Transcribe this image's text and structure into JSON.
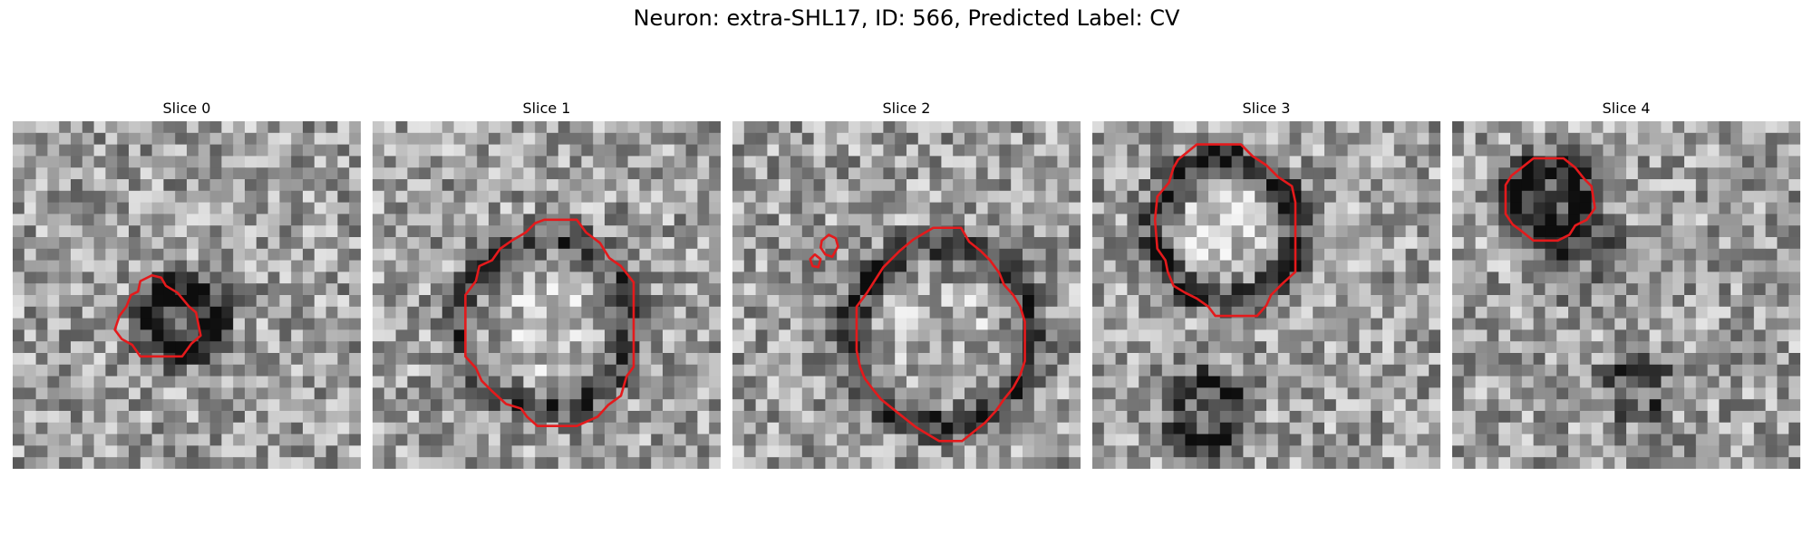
{
  "figure": {
    "title": "Neuron: extra-SHL17, ID: 566, Predicted Label: CV"
  },
  "colors": {
    "contour": "#e41a1c",
    "background": "#ffffff"
  },
  "slices": [
    {
      "title": "Slice 0",
      "contours": [
        [
          [
            11,
            13.8
          ],
          [
            12,
            13.3
          ],
          [
            12.8,
            13.5
          ],
          [
            13.2,
            14.2
          ],
          [
            14.2,
            14.8
          ],
          [
            15.2,
            16
          ],
          [
            15.8,
            16.5
          ],
          [
            16.2,
            18.5
          ],
          [
            15.4,
            19.2
          ],
          [
            14.6,
            20.3
          ],
          [
            11,
            20.3
          ],
          [
            10.3,
            19.3
          ],
          [
            9.4,
            18.8
          ],
          [
            8.8,
            18
          ],
          [
            9.2,
            16.8
          ],
          [
            9.8,
            16
          ],
          [
            10.2,
            15
          ],
          [
            10.8,
            14.7
          ]
        ]
      ]
    },
    {
      "title": "Slice 1",
      "contours": [
        [
          [
            14.8,
            8.5
          ],
          [
            17.6,
            8.5
          ],
          [
            18.4,
            9.6
          ],
          [
            19.6,
            10.5
          ],
          [
            20.4,
            11.8
          ],
          [
            21.4,
            12.5
          ],
          [
            22.5,
            13.9
          ],
          [
            22.5,
            21.2
          ],
          [
            21.9,
            22
          ],
          [
            21.4,
            23.7
          ],
          [
            20.3,
            24.5
          ],
          [
            19.4,
            25.5
          ],
          [
            17.6,
            26.3
          ],
          [
            14.2,
            26.3
          ],
          [
            13.3,
            25.5
          ],
          [
            12.8,
            24.8
          ],
          [
            11.5,
            24.4
          ],
          [
            10.3,
            23.3
          ],
          [
            9.4,
            22.4
          ],
          [
            8.9,
            21.3
          ],
          [
            8,
            20.3
          ],
          [
            8,
            15
          ],
          [
            8.9,
            13.8
          ],
          [
            9.2,
            12.5
          ],
          [
            10.3,
            12
          ],
          [
            11,
            11
          ],
          [
            12,
            10.3
          ],
          [
            13.2,
            9.6
          ],
          [
            14,
            8.8
          ]
        ]
      ]
    },
    {
      "title": "Slice 2",
      "contours": [
        [
          [
            17.3,
            9.2
          ],
          [
            19.7,
            9.2
          ],
          [
            20.4,
            10.4
          ],
          [
            21.4,
            11.2
          ],
          [
            22.2,
            12
          ],
          [
            23,
            13.1
          ],
          [
            23.4,
            14.1
          ],
          [
            24.2,
            15
          ],
          [
            24.8,
            16
          ],
          [
            25.2,
            17.3
          ],
          [
            25.2,
            20.7
          ],
          [
            24.8,
            21.9
          ],
          [
            24.2,
            23
          ],
          [
            23.4,
            24
          ],
          [
            22.7,
            25
          ],
          [
            21.8,
            26
          ],
          [
            20.8,
            26.8
          ],
          [
            19.8,
            27.6
          ],
          [
            17.8,
            27.6
          ],
          [
            16.8,
            27
          ],
          [
            15.8,
            26.4
          ],
          [
            14.8,
            25.6
          ],
          [
            13.8,
            24.8
          ],
          [
            12.8,
            24
          ],
          [
            12,
            23
          ],
          [
            11.4,
            22.2
          ],
          [
            11,
            21.2
          ],
          [
            10.7,
            19.8
          ],
          [
            10.7,
            16
          ],
          [
            11.6,
            14.8
          ],
          [
            12.3,
            13.7
          ],
          [
            13,
            12.6
          ],
          [
            14.4,
            11.2
          ],
          [
            15.6,
            10.2
          ]
        ],
        [
          [
            7.7,
            10.3
          ],
          [
            8.3,
            9.8
          ],
          [
            8.9,
            10.1
          ],
          [
            9.1,
            10.8
          ],
          [
            8.6,
            11.7
          ],
          [
            8,
            11.5
          ],
          [
            7.6,
            10.9
          ]
        ],
        [
          [
            7.1,
            11.5
          ],
          [
            7.6,
            11.9
          ],
          [
            7.4,
            12.6
          ],
          [
            6.9,
            12.5
          ],
          [
            6.7,
            11.9
          ]
        ]
      ]
    },
    {
      "title": "Slice 3",
      "contours": [
        [
          [
            7.4,
            3.3
          ],
          [
            9,
            2
          ],
          [
            12.8,
            2
          ],
          [
            13.8,
            3
          ],
          [
            15,
            3.8
          ],
          [
            16,
            4.8
          ],
          [
            17.2,
            5.6
          ],
          [
            17.5,
            7
          ],
          [
            17.5,
            13
          ],
          [
            16.4,
            14
          ],
          [
            15.4,
            15
          ],
          [
            15,
            15.9
          ],
          [
            14.2,
            16.8
          ],
          [
            10.6,
            16.8
          ],
          [
            10,
            16
          ],
          [
            9,
            15.3
          ],
          [
            8,
            14.8
          ],
          [
            7,
            14.2
          ],
          [
            6.5,
            13
          ],
          [
            6.3,
            12
          ],
          [
            5.6,
            11
          ],
          [
            5.4,
            8.5
          ],
          [
            5.6,
            6.5
          ],
          [
            6.6,
            5.3
          ],
          [
            7,
            4
          ]
        ]
      ]
    },
    {
      "title": "Slice 4",
      "contours": [
        [
          [
            7,
            3.2
          ],
          [
            9.6,
            3.2
          ],
          [
            10.6,
            4
          ],
          [
            11.4,
            5
          ],
          [
            12,
            5.6
          ],
          [
            12.3,
            7.5
          ],
          [
            11.6,
            8.5
          ],
          [
            10.6,
            9
          ],
          [
            10.1,
            9.8
          ],
          [
            9.1,
            10.3
          ],
          [
            7,
            10.3
          ],
          [
            6,
            9.5
          ],
          [
            5.2,
            8.9
          ],
          [
            4.6,
            8
          ],
          [
            4.6,
            5.5
          ],
          [
            5.1,
            4.7
          ],
          [
            6,
            4
          ]
        ]
      ]
    }
  ]
}
